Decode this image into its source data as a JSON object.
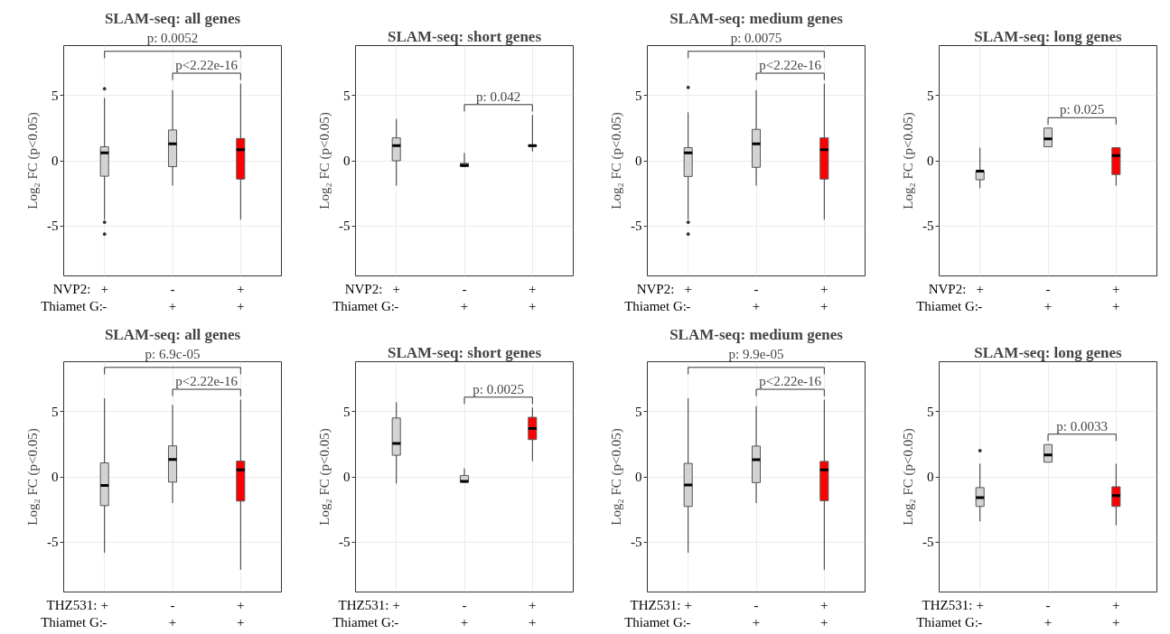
{
  "chart_data": [
    {
      "type": "box",
      "title": "SLAM-seq: all genes",
      "ylabel": "Log₂ FC (p<0.05)",
      "categories": [
        "+\n-",
        "-\n+",
        "+\n+"
      ],
      "colors": [
        "#d3d3d3",
        "#d3d3d3",
        "#ff0000"
      ],
      "ylim": [
        -8.8,
        8.8
      ],
      "yticks": [
        -5,
        0,
        5
      ],
      "grid": true,
      "boxes": [
        {
          "low": -4.5,
          "q1": -1.18,
          "median": 0.6,
          "q3": 1.07,
          "high": 4.8,
          "outliers": [
            5.5,
            -4.7,
            -5.6
          ]
        },
        {
          "low": -1.9,
          "q1": -0.45,
          "median": 1.3,
          "q3": 2.35,
          "high": 5.4
        },
        {
          "low": -4.5,
          "q1": -1.4,
          "median": 0.85,
          "q3": 1.7,
          "high": 5.9
        }
      ],
      "annotations": [
        "NVP2:\nThiamet G:",
        "p: 0.0052",
        "p<2.22e-16"
      ]
    },
    {
      "type": "box",
      "title": "SLAM-seq: short genes",
      "ylabel": "Log₂ FC (p<0.05)",
      "categories": [
        "+\n-",
        "-\n+",
        "+\n+"
      ],
      "colors": [
        "#d3d3d3",
        "#d3d3d3",
        "#ff0000"
      ],
      "ylim": [
        -8.8,
        8.8
      ],
      "yticks": [
        -5,
        0,
        5
      ],
      "grid": true,
      "boxes": [
        {
          "low": -1.9,
          "q1": 0,
          "median": 1.15,
          "q3": 1.75,
          "high": 3.2
        },
        {
          "low": -0.5,
          "q1": -0.45,
          "median": -0.35,
          "q3": -0.2,
          "high": 0.6
        },
        {
          "low": 0.7,
          "q1": 1.1,
          "median": 1.15,
          "q3": 1.2,
          "high": 3.5
        }
      ],
      "annotations": [
        "NVP2:\nThiamet G:",
        "p: 0.042"
      ]
    },
    {
      "type": "box",
      "title": "SLAM-seq: medium genes",
      "ylabel": "Log₂ FC (p<0.05)",
      "categories": [
        "+\n-",
        "-\n+",
        "+\n+"
      ],
      "colors": [
        "#d3d3d3",
        "#d3d3d3",
        "#ff0000"
      ],
      "ylim": [
        -8.8,
        8.8
      ],
      "yticks": [
        -5,
        0,
        5
      ],
      "grid": true,
      "boxes": [
        {
          "low": -4.5,
          "q1": -1.2,
          "median": 0.6,
          "q3": 1.0,
          "high": 3.7,
          "outliers": [
            5.6,
            -4.7,
            -5.6
          ]
        },
        {
          "low": -1.9,
          "q1": -0.5,
          "median": 1.3,
          "q3": 2.4,
          "high": 5.4
        },
        {
          "low": -4.5,
          "q1": -1.4,
          "median": 0.85,
          "q3": 1.75,
          "high": 5.9
        }
      ],
      "annotations": [
        "NVP2:\nThiamet G:",
        "p: 0.0075",
        "p<2.22e-16"
      ]
    },
    {
      "type": "box",
      "title": "SLAM-seq: long genes",
      "ylabel": "Log₂ FC (p<0.05)",
      "categories": [
        "+\n-",
        "-\n+",
        "+\n+"
      ],
      "colors": [
        "#d3d3d3",
        "#d3d3d3",
        "#ff0000"
      ],
      "ylim": [
        -8.8,
        8.8
      ],
      "yticks": [
        -5,
        0,
        5
      ],
      "grid": true,
      "boxes": [
        {
          "low": -2.1,
          "q1": -1.45,
          "median": -0.8,
          "q3": -0.8,
          "high": 1.0
        },
        {
          "low": 1.1,
          "q1": 1.07,
          "median": 1.67,
          "q3": 2.5,
          "high": 2.5
        },
        {
          "low": -1.9,
          "q1": -1.05,
          "median": 0.4,
          "q3": 1.0,
          "high": 1.0
        }
      ],
      "annotations": [
        "NVP2:\nThiamet G:",
        "p: 0.025"
      ]
    },
    {
      "type": "box",
      "title": "SLAM-seq: all genes",
      "ylabel": "Log₂ FC (p<0.05)",
      "categories": [
        "+\n-",
        "-\n+",
        "+\n+"
      ],
      "colors": [
        "#d3d3d3",
        "#d3d3d3",
        "#ff0000"
      ],
      "ylim": [
        -8.8,
        8.8
      ],
      "yticks": [
        -5,
        0,
        5
      ],
      "grid": true,
      "boxes": [
        {
          "low": -5.8,
          "q1": -2.2,
          "median": -0.65,
          "q3": 1.07,
          "high": 6.0
        },
        {
          "low": -2.0,
          "q1": -0.4,
          "median": 1.33,
          "q3": 2.37,
          "high": 5.5
        },
        {
          "low": -7.1,
          "q1": -1.85,
          "median": 0.53,
          "q3": 1.2,
          "high": 5.9
        }
      ],
      "annotations": [
        "THZ531:\nThiamet G:",
        "p: 6.9c-05",
        "p<2.22e-16"
      ]
    },
    {
      "type": "box",
      "title": "SLAM-seq: short genes",
      "ylabel": "Log₂ FC (p<0.05)",
      "categories": [
        "+\n-",
        "-\n+",
        "+\n+"
      ],
      "colors": [
        "#d3d3d3",
        "#d3d3d3",
        "#ff0000"
      ],
      "ylim": [
        -8.8,
        8.8
      ],
      "yticks": [
        -5,
        0,
        5
      ],
      "grid": true,
      "boxes": [
        {
          "low": -0.5,
          "q1": 1.65,
          "median": 2.55,
          "q3": 4.5,
          "high": 5.7
        },
        {
          "low": -0.45,
          "q1": -0.4,
          "median": -0.35,
          "q3": 0.1,
          "high": 0.65
        },
        {
          "low": 1.2,
          "q1": 2.85,
          "median": 3.7,
          "q3": 4.55,
          "high": 5.3
        }
      ],
      "annotations": [
        "THZ531:\nThiamet G:",
        "p: 0.0025"
      ]
    },
    {
      "type": "box",
      "title": "SLAM-seq: medium genes",
      "ylabel": "Log₂ FC (p<0.05)",
      "categories": [
        "+\n-",
        "-\n+",
        "+\n+"
      ],
      "colors": [
        "#d3d3d3",
        "#d3d3d3",
        "#ff0000"
      ],
      "ylim": [
        -8.8,
        8.8
      ],
      "yticks": [
        -5,
        0,
        5
      ],
      "grid": true,
      "boxes": [
        {
          "low": -5.8,
          "q1": -2.26,
          "median": -0.62,
          "q3": 1.03,
          "high": 6.0
        },
        {
          "low": -2.0,
          "q1": -0.44,
          "median": 1.32,
          "q3": 2.35,
          "high": 5.4
        },
        {
          "low": -7.1,
          "q1": -1.82,
          "median": 0.53,
          "q3": 1.18,
          "high": 5.9
        }
      ],
      "annotations": [
        "THZ531:\nThiamet G:",
        "p: 9.9e-05",
        "p<2.22e-16"
      ]
    },
    {
      "type": "box",
      "title": "SLAM-seq: long genes",
      "ylabel": "Log₂ FC (p<0.05)",
      "categories": [
        "+\n-",
        "-\n+",
        "+\n+"
      ],
      "colors": [
        "#d3d3d3",
        "#d3d3d3",
        "#ff0000"
      ],
      "ylim": [
        -8.8,
        8.8
      ],
      "yticks": [
        -5,
        0,
        5
      ],
      "grid": true,
      "boxes": [
        {
          "low": -3.4,
          "q1": -2.26,
          "median": -1.59,
          "q3": -0.82,
          "high": 1.0,
          "outliers": [
            2.0
          ]
        },
        {
          "low": 1.12,
          "q1": 1.12,
          "median": 1.68,
          "q3": 2.47,
          "high": 2.47
        },
        {
          "low": -3.7,
          "q1": -2.26,
          "median": -1.44,
          "q3": -0.76,
          "high": 1.0
        }
      ],
      "annotations": [
        "THZ531:\nThiamet G:",
        "p: 0.0033"
      ]
    }
  ]
}
